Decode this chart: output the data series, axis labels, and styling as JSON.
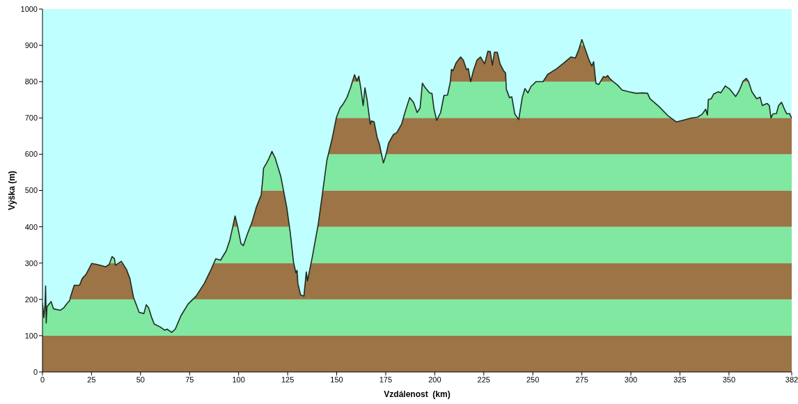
{
  "chart_data": {
    "type": "line",
    "xlabel": "Vzdálenost  (km)",
    "ylabel": "Výška (m)",
    "x": [
      0,
      0.7,
      1.3,
      1.6,
      1.9,
      2.3,
      4.4,
      5.6,
      9.1,
      10.9,
      12.7,
      13.8,
      14.4,
      16.2,
      18.9,
      20.3,
      22.1,
      23.3,
      25.1,
      28,
      32.2,
      34,
      35.5,
      36.7,
      37.2,
      40.2,
      42.8,
      44.6,
      46.4,
      49.3,
      51.7,
      52.9,
      54.1,
      55.8,
      57,
      60,
      62.4,
      63.5,
      65.9,
      67.7,
      70.6,
      74.2,
      78.3,
      82.5,
      85.4,
      88.4,
      90.8,
      93.7,
      95.5,
      97.3,
      98.2,
      99.6,
      101.2,
      102.4,
      104.4,
      106.7,
      109.1,
      111.5,
      112.3,
      112.7,
      114.4,
      115.6,
      117,
      118.6,
      121.5,
      124.5,
      126.3,
      128,
      129.2,
      129.8,
      130.2,
      131.6,
      133.3,
      134.5,
      135.1,
      137.5,
      140.5,
      142.8,
      145,
      147.6,
      149.9,
      151.7,
      153.5,
      155.2,
      157,
      159.1,
      160.3,
      161.3,
      162.3,
      163.5,
      164.4,
      165.5,
      167.1,
      167.7,
      169.1,
      170.6,
      171.8,
      173,
      173.8,
      175,
      176.5,
      178.9,
      180.7,
      183.1,
      184.8,
      187.2,
      189.2,
      191,
      192.5,
      193.7,
      194.9,
      197.3,
      198.6,
      199.6,
      201,
      203,
      204.7,
      206.5,
      207.9,
      208.5,
      209.3,
      210.9,
      212,
      213.2,
      214.6,
      216.2,
      217.1,
      218.3,
      219.7,
      221.5,
      223.3,
      225.4,
      227.1,
      228.3,
      229.4,
      230.4,
      231.9,
      233.3,
      235.1,
      236.1,
      236.5,
      238.1,
      239.3,
      240.8,
      242.8,
      244.6,
      246,
      247.5,
      249.1,
      251.7,
      255.2,
      257.6,
      262.3,
      265.9,
      269.4,
      271.7,
      273.4,
      275,
      276.3,
      278.7,
      280.1,
      281,
      282.2,
      283.6,
      286,
      287.2,
      288.2,
      289,
      290.7,
      293.1,
      295.5,
      299,
      302.6,
      306.1,
      308.5,
      309.7,
      314.4,
      319.1,
      323.3,
      327.4,
      331,
      333.9,
      336.3,
      338.1,
      339,
      339.5,
      341,
      342.2,
      344.6,
      345.8,
      348.1,
      350.5,
      353.4,
      355.2,
      357.2,
      358.8,
      360,
      361.7,
      364.1,
      365.9,
      367,
      369.4,
      370.6,
      371.4,
      372.4,
      374.2,
      375.3,
      376.8,
      378.3,
      379.5,
      380.9,
      382
    ],
    "values": [
      190,
      150,
      185,
      237,
      135,
      180,
      194,
      174,
      170,
      177,
      190,
      196,
      209,
      239,
      239,
      258,
      268,
      280,
      299,
      296,
      290,
      296,
      318,
      312,
      294,
      305,
      283,
      257,
      206,
      164,
      161,
      185,
      177,
      148,
      132,
      124,
      115,
      118,
      109,
      118,
      155,
      187,
      209,
      244,
      276,
      312,
      308,
      334,
      363,
      407,
      430,
      398,
      354,
      348,
      379,
      411,
      455,
      488,
      532,
      561,
      577,
      590,
      608,
      590,
      539,
      455,
      385,
      302,
      273,
      280,
      244,
      212,
      209,
      276,
      251,
      315,
      404,
      494,
      583,
      641,
      702,
      727,
      740,
      756,
      782,
      819,
      802,
      815,
      782,
      734,
      783,
      750,
      683,
      692,
      689,
      647,
      628,
      596,
      576,
      596,
      631,
      654,
      660,
      683,
      715,
      756,
      743,
      715,
      727,
      796,
      785,
      769,
      767,
      725,
      693,
      715,
      762,
      763,
      798,
      834,
      830,
      852,
      860,
      868,
      859,
      833,
      836,
      800,
      830,
      859,
      868,
      849,
      884,
      883,
      845,
      881,
      881,
      849,
      830,
      824,
      779,
      756,
      758,
      711,
      695,
      756,
      781,
      769,
      787,
      800,
      800,
      820,
      836,
      852,
      868,
      865,
      888,
      916,
      896,
      859,
      843,
      855,
      795,
      792,
      814,
      812,
      817,
      810,
      801,
      791,
      777,
      772,
      768,
      769,
      768,
      753,
      731,
      705,
      689,
      695,
      700,
      702,
      710,
      724,
      708,
      751,
      753,
      766,
      772,
      769,
      788,
      779,
      759,
      775,
      801,
      809,
      800,
      772,
      753,
      757,
      734,
      740,
      734,
      700,
      711,
      712,
      734,
      743,
      724,
      711,
      712,
      699
    ],
    "color": "#1c2b22",
    "xlim": [
      0,
      382
    ],
    "xticks": [
      0,
      25,
      50,
      75,
      100,
      125,
      150,
      175,
      200,
      225,
      250,
      275,
      300,
      325,
      350,
      382
    ],
    "ylim": [
      0,
      1000
    ],
    "yticks": [
      0,
      100,
      200,
      300,
      400,
      500,
      600,
      700,
      800,
      900,
      1000
    ],
    "bands": [
      {
        "axis": "y",
        "from": 0,
        "to": 100,
        "color": "#9c7446"
      },
      {
        "axis": "y",
        "from": 100,
        "to": 200,
        "color": "#80e8a0"
      },
      {
        "axis": "y",
        "from": 200,
        "to": 300,
        "color": "#9c7446"
      },
      {
        "axis": "y",
        "from": 300,
        "to": 400,
        "color": "#80e8a0"
      },
      {
        "axis": "y",
        "from": 400,
        "to": 500,
        "color": "#9c7446"
      },
      {
        "axis": "y",
        "from": 500,
        "to": 600,
        "color": "#80e8a0"
      },
      {
        "axis": "y",
        "from": 600,
        "to": 700,
        "color": "#9c7446"
      },
      {
        "axis": "y",
        "from": 700,
        "to": 800,
        "color": "#80e8a0"
      },
      {
        "axis": "y",
        "from": 800,
        "to": 900,
        "color": "#9c7446"
      },
      {
        "axis": "y",
        "from": 900,
        "to": 1000,
        "color": "#80e8a0"
      }
    ]
  }
}
